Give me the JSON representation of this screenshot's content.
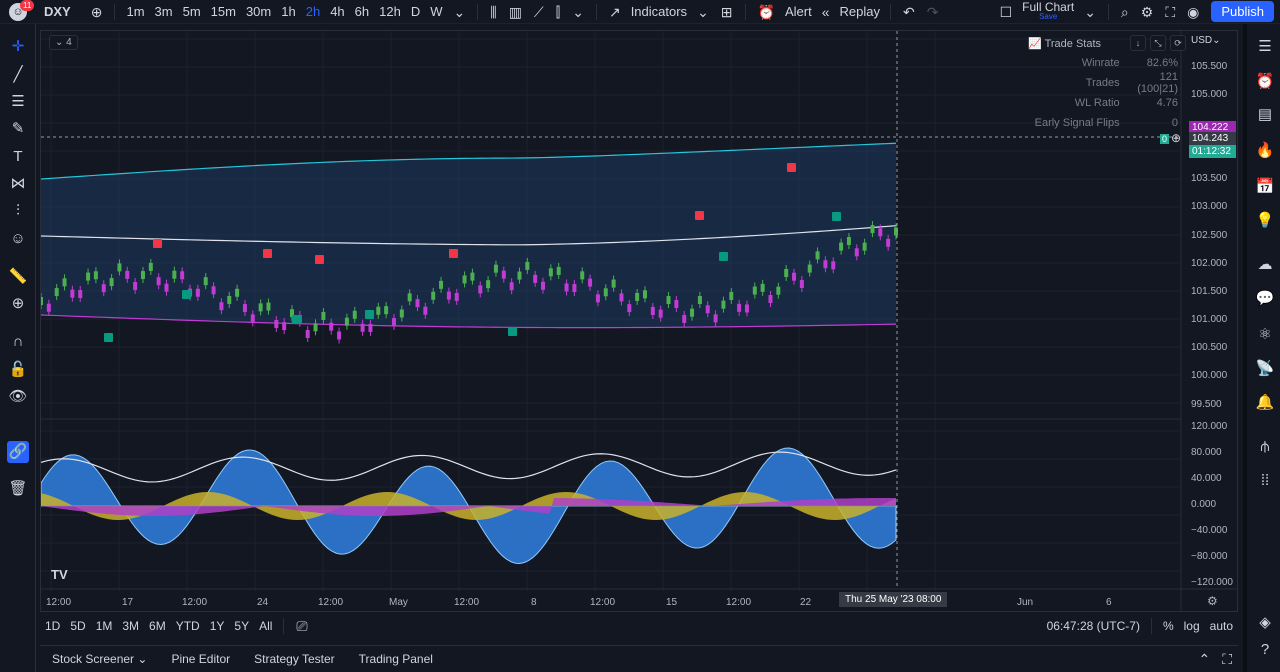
{
  "topbar": {
    "notifications": "11",
    "symbol": "DXY",
    "intervals": [
      "1m",
      "3m",
      "5m",
      "15m",
      "30m",
      "1h",
      "2h",
      "4h",
      "6h",
      "12h",
      "D",
      "W"
    ],
    "active_interval": "2h",
    "indicators_label": "Indicators",
    "alert_label": "Alert",
    "replay_label": "Replay",
    "full_chart_label": "Full Chart",
    "save_label": "Save",
    "publish_label": "Publish"
  },
  "chart": {
    "legend_count": "4",
    "currency": "USD",
    "trade_stats": {
      "title": "Trade Stats",
      "rows": [
        {
          "key": "Winrate",
          "value": "82.6%"
        },
        {
          "key": "Trades",
          "value": "121 (100|21)"
        },
        {
          "key": "WL Ratio",
          "value": "4.76"
        },
        {
          "key": "Early Signal Flips",
          "value": "0"
        }
      ]
    },
    "price_labels": [
      "105.500",
      "105.000",
      "103.500",
      "103.000",
      "102.500",
      "102.000",
      "101.500",
      "101.000",
      "100.500",
      "100.000",
      "99.500"
    ],
    "last_price_tag": "104.243",
    "upper_tag": "104.222",
    "countdown_tag": "01:12:32",
    "crosshair_zero": "0",
    "osc_labels": [
      "120.000",
      "80.000",
      "40.000",
      "0.000",
      "−40.000",
      "−80.000",
      "−120.000"
    ],
    "time_labels": [
      "12:00",
      "17",
      "12:00",
      "24",
      "12:00",
      "May",
      "12:00",
      "8",
      "12:00",
      "15",
      "12:00",
      "22",
      "Jun",
      "6"
    ],
    "crosshair_time": "Thu 25 May '23   08:00",
    "colors": {
      "up": "#4caf50",
      "down": "#c23bd4",
      "band_upper": "#26c6da",
      "band_lower": "#c23bd4",
      "basis": "#e0e3eb",
      "buy": "#089981",
      "sell": "#f23645",
      "accent": "#2962ff"
    }
  },
  "bottombar": {
    "ranges": [
      "1D",
      "5D",
      "1M",
      "3M",
      "6M",
      "YTD",
      "1Y",
      "5Y",
      "All"
    ],
    "clock": "06:47:28 (UTC-7)",
    "percent": "%",
    "log": "log",
    "auto": "auto"
  },
  "footer": {
    "tabs": [
      "Stock Screener",
      "Pine Editor",
      "Strategy Tester",
      "Trading Panel"
    ]
  }
}
